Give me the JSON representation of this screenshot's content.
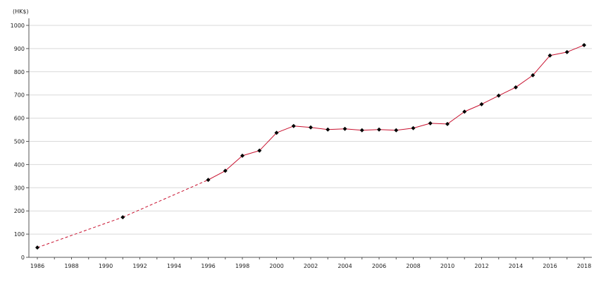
{
  "chart_data": {
    "type": "line",
    "title": "",
    "xlabel": "",
    "ylabel": "(HK$)",
    "xlim": [
      1986,
      2018
    ],
    "ylim": [
      0,
      1000
    ],
    "grid": true,
    "legend": "none",
    "x_ticks": [
      "1986",
      "1988",
      "1990",
      "1992",
      "1994",
      "1996",
      "1998",
      "2000",
      "2002",
      "2004",
      "2006",
      "2008",
      "2010",
      "2012",
      "2014",
      "2016",
      "2018"
    ],
    "y_ticks": [
      "0",
      "100",
      "200",
      "300",
      "400",
      "500",
      "600",
      "700",
      "800",
      "900",
      "1000"
    ],
    "series": [
      {
        "color": "#c8102e",
        "marker_color": "#000000",
        "dashed_segments": [
          [
            1986,
            1991
          ],
          [
            1991,
            1996
          ]
        ],
        "points": [
          {
            "x": 1986,
            "y": 42
          },
          {
            "x": 1991,
            "y": 173
          },
          {
            "x": 1996,
            "y": 334
          },
          {
            "x": 1997,
            "y": 373
          },
          {
            "x": 1998,
            "y": 438
          },
          {
            "x": 1999,
            "y": 460
          },
          {
            "x": 2000,
            "y": 537
          },
          {
            "x": 2001,
            "y": 566
          },
          {
            "x": 2002,
            "y": 560
          },
          {
            "x": 2003,
            "y": 551
          },
          {
            "x": 2004,
            "y": 554
          },
          {
            "x": 2005,
            "y": 548
          },
          {
            "x": 2006,
            "y": 551
          },
          {
            "x": 2007,
            "y": 548
          },
          {
            "x": 2008,
            "y": 557
          },
          {
            "x": 2009,
            "y": 578
          },
          {
            "x": 2010,
            "y": 575
          },
          {
            "x": 2011,
            "y": 628
          },
          {
            "x": 2012,
            "y": 660
          },
          {
            "x": 2013,
            "y": 697
          },
          {
            "x": 2014,
            "y": 733
          },
          {
            "x": 2015,
            "y": 785
          },
          {
            "x": 2016,
            "y": 870
          },
          {
            "x": 2017,
            "y": 885
          },
          {
            "x": 2018,
            "y": 915
          }
        ]
      }
    ]
  }
}
